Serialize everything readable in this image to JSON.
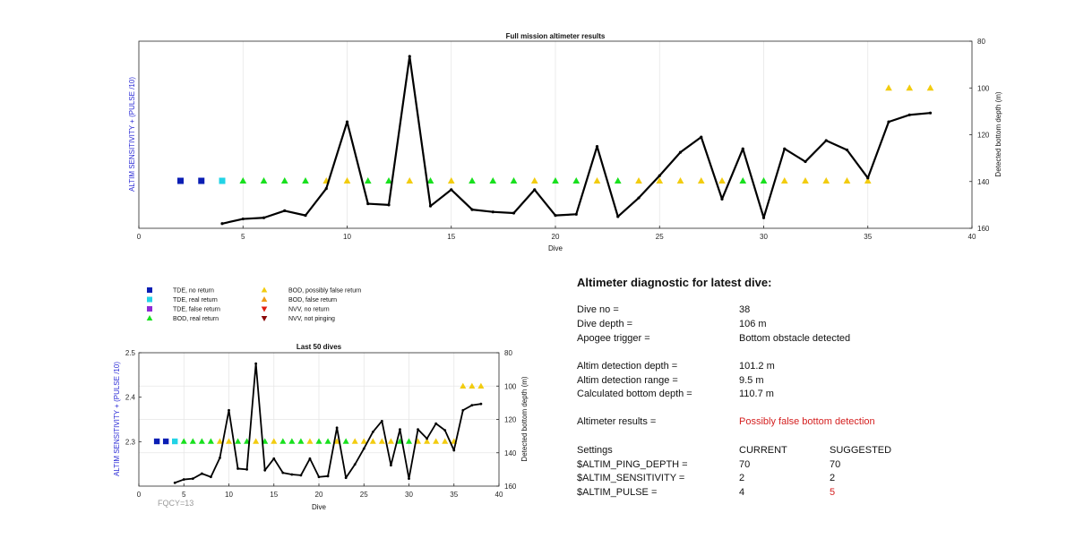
{
  "colors": {
    "tde_no_return": "#0a1eb4",
    "tde_real_return": "#22d3e6",
    "tde_false_return": "#8c2ad6",
    "bod_real_return": "#18e01e",
    "bod_possibly_false": "#f2cc10",
    "bod_false_return": "#f09a14",
    "nvv_no_return": "#e01e10",
    "nvv_not_pinging": "#8a0a0a",
    "axis_label_blue": "#2b2bd6",
    "suggested_red": "#d41f1f"
  },
  "chart_data": [
    {
      "type": "line",
      "title": "Full mission altimeter results",
      "xlabel": "Dive",
      "ylabel_left": "ALTIM SENSITIVITY + (PULSE /10)",
      "ylabel_right": "Detected bottom depth (m)",
      "xlim": [
        0,
        40
      ],
      "xticks": [
        0,
        5,
        10,
        15,
        20,
        25,
        30,
        35,
        40
      ],
      "ylim_right": [
        160,
        80
      ],
      "yticks_right": [
        80,
        100,
        120,
        140,
        160
      ],
      "grid_x": true,
      "depth_series": {
        "x": [
          4,
          5,
          6,
          7,
          8,
          9,
          10,
          11,
          12,
          13,
          14,
          15,
          16,
          17,
          18,
          19,
          20,
          21,
          22,
          23,
          24,
          25,
          26,
          27,
          28,
          29,
          30,
          31,
          32,
          33,
          34,
          35,
          36,
          37,
          38
        ],
        "y": [
          158,
          156,
          155.5,
          152.5,
          154.5,
          143,
          114.5,
          149.5,
          150,
          86.5,
          150.5,
          143.5,
          152,
          153,
          153.5,
          143.5,
          154.5,
          154,
          125,
          155,
          147,
          137.5,
          127.5,
          121,
          147.5,
          126,
          155.5,
          126,
          131.5,
          122.5,
          126.5,
          138.5,
          114.5,
          111.5,
          110.7
        ]
      },
      "markers": [
        {
          "x": 2,
          "type": "tde_no_return"
        },
        {
          "x": 3,
          "type": "tde_no_return"
        },
        {
          "x": 4,
          "type": "tde_real_return"
        },
        {
          "x": 5,
          "type": "bod_real_return"
        },
        {
          "x": 6,
          "type": "bod_real_return"
        },
        {
          "x": 7,
          "type": "bod_real_return"
        },
        {
          "x": 8,
          "type": "bod_real_return"
        },
        {
          "x": 9,
          "type": "bod_possibly_false"
        },
        {
          "x": 10,
          "type": "bod_possibly_false"
        },
        {
          "x": 11,
          "type": "bod_real_return"
        },
        {
          "x": 12,
          "type": "bod_real_return"
        },
        {
          "x": 13,
          "type": "bod_possibly_false"
        },
        {
          "x": 14,
          "type": "bod_real_return"
        },
        {
          "x": 15,
          "type": "bod_possibly_false"
        },
        {
          "x": 16,
          "type": "bod_real_return"
        },
        {
          "x": 17,
          "type": "bod_real_return"
        },
        {
          "x": 18,
          "type": "bod_real_return"
        },
        {
          "x": 19,
          "type": "bod_possibly_false"
        },
        {
          "x": 20,
          "type": "bod_real_return"
        },
        {
          "x": 21,
          "type": "bod_real_return"
        },
        {
          "x": 22,
          "type": "bod_possibly_false"
        },
        {
          "x": 23,
          "type": "bod_real_return"
        },
        {
          "x": 24,
          "type": "bod_possibly_false"
        },
        {
          "x": 25,
          "type": "bod_possibly_false"
        },
        {
          "x": 26,
          "type": "bod_possibly_false"
        },
        {
          "x": 27,
          "type": "bod_possibly_false"
        },
        {
          "x": 28,
          "type": "bod_possibly_false"
        },
        {
          "x": 29,
          "type": "bod_real_return"
        },
        {
          "x": 30,
          "type": "bod_real_return"
        },
        {
          "x": 31,
          "type": "bod_possibly_false"
        },
        {
          "x": 32,
          "type": "bod_possibly_false"
        },
        {
          "x": 33,
          "type": "bod_possibly_false"
        },
        {
          "x": 34,
          "type": "bod_possibly_false"
        },
        {
          "x": 35,
          "type": "bod_possibly_false"
        }
      ],
      "markers_secondary": [
        {
          "x": 36,
          "y": 100,
          "type": "bod_possibly_false"
        },
        {
          "x": 37,
          "y": 100,
          "type": "bod_possibly_false"
        },
        {
          "x": 38,
          "y": 100,
          "type": "bod_possibly_false"
        }
      ]
    },
    {
      "type": "line",
      "title": "Last 50 dives",
      "xlabel": "Dive",
      "ylabel_left": "ALTIM SENSITIVITY + (PULSE /10)",
      "ylabel_right": "Detected bottom depth (m)",
      "xlim": [
        0,
        40
      ],
      "xticks": [
        0,
        5,
        10,
        15,
        20,
        25,
        30,
        35,
        40
      ],
      "ylim_left": [
        2.2,
        2.5
      ],
      "yticks_left": [
        2.3,
        2.4,
        2.5
      ],
      "ylim_right": [
        160,
        80
      ],
      "yticks_right": [
        80,
        100,
        120,
        140,
        160
      ],
      "grid": true,
      "note": "FQCY=13"
    }
  ],
  "legend": {
    "items": [
      {
        "label": "TDE, no return",
        "type": "tde_no_return",
        "shape": "square"
      },
      {
        "label": "TDE, real return",
        "type": "tde_real_return",
        "shape": "square"
      },
      {
        "label": "TDE, false return",
        "type": "tde_false_return",
        "shape": "square"
      },
      {
        "label": "BOD, real return",
        "type": "bod_real_return",
        "shape": "triangle-up"
      },
      {
        "label": "BOD, possibly false return",
        "type": "bod_possibly_false",
        "shape": "triangle-up"
      },
      {
        "label": "BOD, false return",
        "type": "bod_false_return",
        "shape": "triangle-up"
      },
      {
        "label": "NVV, no return",
        "type": "nvv_no_return",
        "shape": "triangle-down"
      },
      {
        "label": "NVV, not pinging",
        "type": "nvv_not_pinging",
        "shape": "triangle-down"
      }
    ]
  },
  "diagnostic": {
    "title": "Altimeter diagnostic for latest dive:",
    "dive_no_label": "Dive no =",
    "dive_no_value": "38",
    "dive_depth_label": "Dive depth =",
    "dive_depth_value": "106 m",
    "apogee_label": "Apogee trigger =",
    "apogee_value": "Bottom obstacle detected",
    "altim_det_depth_label": "Altim detection depth =",
    "altim_det_depth_value": "101.2 m",
    "altim_det_range_label": "Altim detection range =",
    "altim_det_range_value": "9.5 m",
    "calc_bottom_label": "Calculated bottom depth =",
    "calc_bottom_value": "110.7 m",
    "results_label": "Altimeter results =",
    "results_value": "Possibly false bottom detection",
    "settings_label": "Settings",
    "current_header": "CURRENT",
    "suggested_header": "SUGGESTED",
    "ping_depth_label": "$ALTIM_PING_DEPTH =",
    "ping_depth_current": "70",
    "ping_depth_suggested": "70",
    "sensitivity_label": "$ALTIM_SENSITIVITY =",
    "sensitivity_current": "2",
    "sensitivity_suggested": "2",
    "pulse_label": "$ALTIM_PULSE =",
    "pulse_current": "4",
    "pulse_suggested": "5"
  }
}
